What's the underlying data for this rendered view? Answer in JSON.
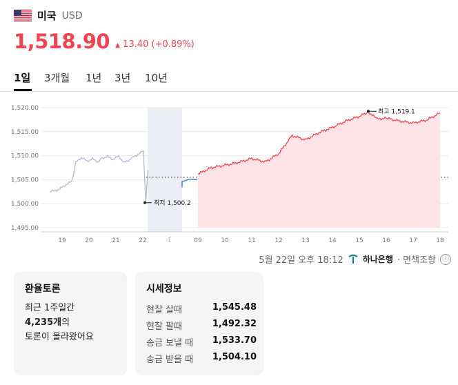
{
  "header": {
    "country": "미국",
    "currency": "USD",
    "price": "1,518.90",
    "change": "13.40 (+0.89%)"
  },
  "colors": {
    "accent_up": "#f04452",
    "prev_day_line": "#b9b8d6",
    "gap_line": "#2f7ad1"
  },
  "tabs": [
    "1일",
    "3개월",
    "1년",
    "3년",
    "10년"
  ],
  "active_tab": "1일",
  "chart_data": {
    "type": "line",
    "y_ticks": [
      "1,520.00",
      "1,515.00",
      "1,510.00",
      "1,505.00",
      "1,500.00",
      "1,495.00"
    ],
    "ylim": [
      1495,
      1520
    ],
    "x_ticks_prev": [
      "19",
      "20",
      "21",
      "22"
    ],
    "x_ticks_today": [
      "09",
      "10",
      "11",
      "12",
      "13",
      "14",
      "15",
      "16",
      "17",
      "18"
    ],
    "night_icon": "moon-icon",
    "reference_value": 1505.5,
    "annotations": {
      "high_label": "최고 1,519.1",
      "low_label": "최저 1,500.2"
    },
    "prev_series": [
      [
        "19/00",
        1502.5
      ],
      [
        "19/05",
        1502.7
      ],
      [
        "19/10",
        1503.2
      ],
      [
        "19/15",
        1504.0
      ],
      [
        "19/20",
        1504.6
      ],
      [
        "20/00",
        1508.6
      ],
      [
        "20/05",
        1509.6
      ],
      [
        "20/10",
        1508.9
      ],
      [
        "20/15",
        1509.3
      ],
      [
        "20/20",
        1508.7
      ],
      [
        "21/00",
        1509.5
      ],
      [
        "21/05",
        1509.8
      ],
      [
        "21/10",
        1509.2
      ],
      [
        "21/15",
        1509.9
      ],
      [
        "21/20",
        1508.5
      ],
      [
        "22/00",
        1511.0
      ],
      [
        "22/02",
        1500.2
      ],
      [
        "22/04",
        1507.0
      ]
    ],
    "gap_series": [
      [
        "08/30",
        1504.6
      ],
      [
        "08/45",
        1505.1
      ],
      [
        "09/00",
        1505.0
      ]
    ],
    "today_series": [
      [
        "09:00",
        1506.2
      ],
      [
        "09:30",
        1507.5
      ],
      [
        "10:00",
        1508.0
      ],
      [
        "10:30",
        1508.6
      ],
      [
        "11:00",
        1509.4
      ],
      [
        "11:30",
        1508.7
      ],
      [
        "12:00",
        1510.4
      ],
      [
        "12:30",
        1514.2
      ],
      [
        "13:00",
        1513.3
      ],
      [
        "13:30",
        1514.8
      ],
      [
        "14:00",
        1515.9
      ],
      [
        "14:30",
        1517.2
      ],
      [
        "15:00",
        1518.2
      ],
      [
        "15:20",
        1519.1
      ],
      [
        "15:40",
        1517.6
      ],
      [
        "16:00",
        1517.8
      ],
      [
        "16:30",
        1517.2
      ],
      [
        "17:00",
        1516.8
      ],
      [
        "17:30",
        1517.4
      ],
      [
        "18:00",
        1518.9
      ]
    ]
  },
  "meta": {
    "timestamp": "5월 22일 오후 18:12",
    "bank": "하나은행",
    "disclaimer": "· 면책조항",
    "info_icon": "ⓘ"
  },
  "discussion": {
    "title": "환율토론",
    "line1": "최근 1주일간",
    "count": "4,235개",
    "count_suffix": "의",
    "line3": "토론이 올라왔어요"
  },
  "quote": {
    "title": "시세정보",
    "rows": [
      {
        "label": "현찰 살때",
        "value": "1,545.48"
      },
      {
        "label": "현찰 팔때",
        "value": "1,492.32"
      },
      {
        "label": "송금 보낼 때",
        "value": "1,533.70"
      },
      {
        "label": "송금 받을 때",
        "value": "1,504.10"
      }
    ]
  }
}
